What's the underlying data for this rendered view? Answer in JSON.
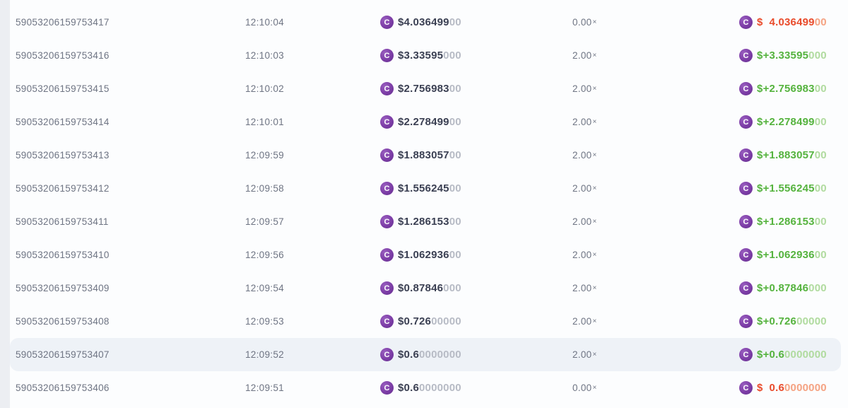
{
  "colors": {
    "page_bg": "#eceef2",
    "content_bg": "#fcfdfe",
    "text_gray": "#6e7483",
    "text_dark": "#3b4053",
    "zeros_gray": "#b7bbc5",
    "coin_purple": "#7c3da6",
    "coin_purple_dark": "#632e8d",
    "win_green": "#55b33e",
    "win_green_light": "#b0db9f",
    "loss_orange": "#e94b2b",
    "loss_orange_light": "#f5a383",
    "highlight_bg": "#eef2f7"
  },
  "table": {
    "shared": {
      "coin": "C",
      "coin_icon_name": "coin-icon",
      "multiplier_symbol": "×",
      "profit_currency": "$"
    },
    "rows": [
      {
        "id": "59053206159753417",
        "time": "12:10:04",
        "bet_main": "$4.036499",
        "bet_zeros": "00",
        "multiplier": "0.00",
        "profit_sign": " ",
        "profit_main": "4.036499",
        "profit_zeros": "00",
        "outcome": "loss",
        "highlighted": false
      },
      {
        "id": "59053206159753416",
        "time": "12:10:03",
        "bet_main": "$3.33595",
        "bet_zeros": "000",
        "multiplier": "2.00",
        "profit_sign": "+",
        "profit_main": "3.33595",
        "profit_zeros": "000",
        "outcome": "win",
        "highlighted": false
      },
      {
        "id": "59053206159753415",
        "time": "12:10:02",
        "bet_main": "$2.756983",
        "bet_zeros": "00",
        "multiplier": "2.00",
        "profit_sign": "+",
        "profit_main": "2.756983",
        "profit_zeros": "00",
        "outcome": "win",
        "highlighted": false
      },
      {
        "id": "59053206159753414",
        "time": "12:10:01",
        "bet_main": "$2.278499",
        "bet_zeros": "00",
        "multiplier": "2.00",
        "profit_sign": "+",
        "profit_main": "2.278499",
        "profit_zeros": "00",
        "outcome": "win",
        "highlighted": false
      },
      {
        "id": "59053206159753413",
        "time": "12:09:59",
        "bet_main": "$1.883057",
        "bet_zeros": "00",
        "multiplier": "2.00",
        "profit_sign": "+",
        "profit_main": "1.883057",
        "profit_zeros": "00",
        "outcome": "win",
        "highlighted": false
      },
      {
        "id": "59053206159753412",
        "time": "12:09:58",
        "bet_main": "$1.556245",
        "bet_zeros": "00",
        "multiplier": "2.00",
        "profit_sign": "+",
        "profit_main": "1.556245",
        "profit_zeros": "00",
        "outcome": "win",
        "highlighted": false
      },
      {
        "id": "59053206159753411",
        "time": "12:09:57",
        "bet_main": "$1.286153",
        "bet_zeros": "00",
        "multiplier": "2.00",
        "profit_sign": "+",
        "profit_main": "1.286153",
        "profit_zeros": "00",
        "outcome": "win",
        "highlighted": false
      },
      {
        "id": "59053206159753410",
        "time": "12:09:56",
        "bet_main": "$1.062936",
        "bet_zeros": "00",
        "multiplier": "2.00",
        "profit_sign": "+",
        "profit_main": "1.062936",
        "profit_zeros": "00",
        "outcome": "win",
        "highlighted": false
      },
      {
        "id": "59053206159753409",
        "time": "12:09:54",
        "bet_main": "$0.87846",
        "bet_zeros": "000",
        "multiplier": "2.00",
        "profit_sign": "+",
        "profit_main": "0.87846",
        "profit_zeros": "000",
        "outcome": "win",
        "highlighted": false
      },
      {
        "id": "59053206159753408",
        "time": "12:09:53",
        "bet_main": "$0.726",
        "bet_zeros": "00000",
        "multiplier": "2.00",
        "profit_sign": "+",
        "profit_main": "0.726",
        "profit_zeros": "00000",
        "outcome": "win",
        "highlighted": false
      },
      {
        "id": "59053206159753407",
        "time": "12:09:52",
        "bet_main": "$0.6",
        "bet_zeros": "0000000",
        "multiplier": "2.00",
        "profit_sign": "+",
        "profit_main": "0.6",
        "profit_zeros": "0000000",
        "outcome": "win",
        "highlighted": true
      },
      {
        "id": "59053206159753406",
        "time": "12:09:51",
        "bet_main": "$0.6",
        "bet_zeros": "0000000",
        "multiplier": "0.00",
        "profit_sign": " ",
        "profit_main": "0.6",
        "profit_zeros": "0000000",
        "outcome": "loss",
        "highlighted": false
      }
    ]
  }
}
